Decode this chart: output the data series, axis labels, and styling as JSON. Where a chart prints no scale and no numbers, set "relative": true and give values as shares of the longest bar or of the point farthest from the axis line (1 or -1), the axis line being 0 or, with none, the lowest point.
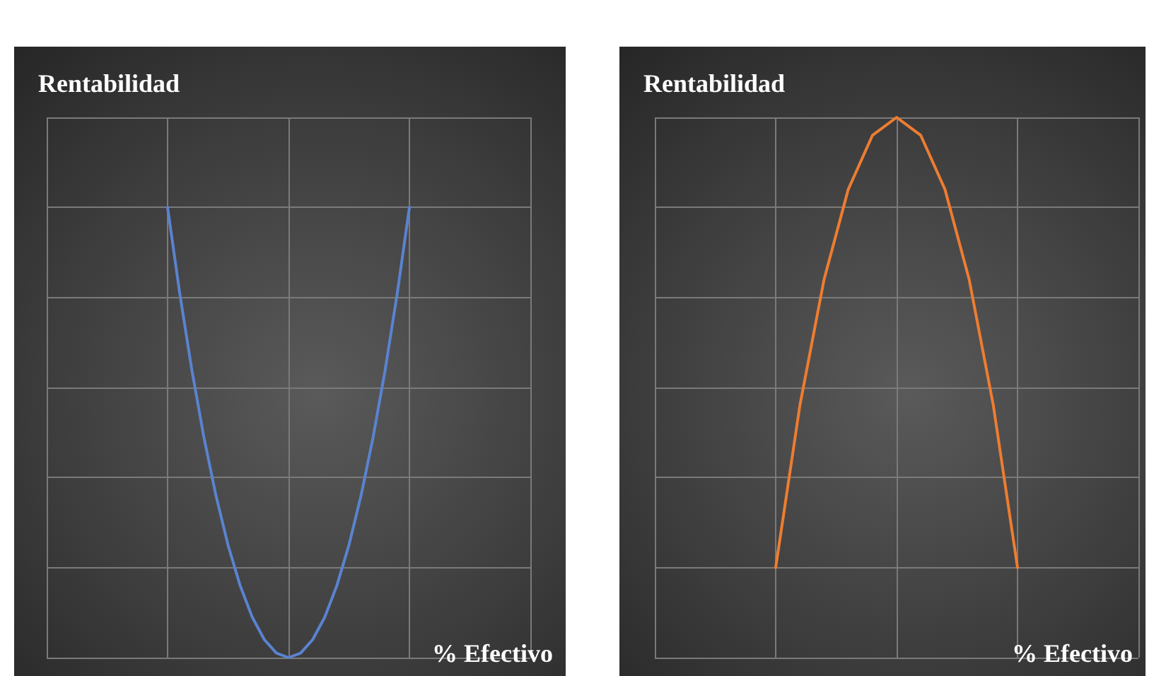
{
  "chart_data": [
    {
      "type": "line",
      "relative": true,
      "ylabel": "Rentabilidad",
      "xlabel": "% Efectivo",
      "grid": true,
      "marker": "none",
      "categories": [
        null,
        null,
        null,
        null,
        null,
        null,
        null,
        null,
        null,
        null,
        null,
        null,
        null,
        null,
        null,
        null,
        null,
        null,
        null,
        null,
        null,
        null,
        null,
        null,
        null,
        null,
        null,
        null,
        null,
        null,
        null,
        null,
        null,
        null,
        null,
        null,
        null,
        null,
        null,
        null,
        null
      ],
      "series": [
        {
          "color": "#5a83d0",
          "values": [
            null,
            null,
            null,
            null,
            null,
            null,
            null,
            null,
            null,
            null,
            1,
            0.81,
            0.64,
            0.49,
            0.36,
            0.25,
            0.16,
            0.09,
            0.04,
            0.01,
            0,
            0.01,
            0.04,
            0.09,
            0.16,
            0.25,
            0.36,
            0.49,
            0.64,
            0.81,
            1,
            null,
            null,
            null,
            null,
            null,
            null,
            null,
            null,
            null,
            null
          ]
        }
      ]
    },
    {
      "type": "line",
      "relative": true,
      "ylabel": "Rentabilidad",
      "xlabel": "% Efectivo",
      "grid": true,
      "marker": "none",
      "categories": [
        null,
        null,
        null,
        null,
        null,
        null,
        null,
        null,
        null,
        null,
        null,
        null,
        null,
        null,
        null,
        null,
        null,
        null,
        null,
        null,
        null
      ],
      "series": [
        {
          "color": "#ed7d31",
          "values": [
            null,
            null,
            null,
            null,
            null,
            0,
            0.36,
            0.64,
            0.84,
            0.96,
            1,
            0.96,
            0.84,
            0.64,
            0.36,
            0,
            null,
            null,
            null,
            null,
            null
          ]
        }
      ]
    }
  ]
}
